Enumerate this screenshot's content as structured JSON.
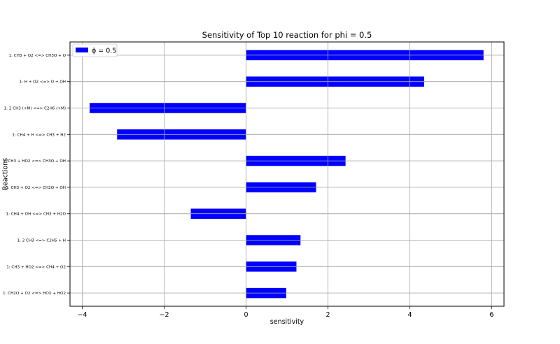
{
  "chart_data": {
    "type": "bar",
    "orientation": "horizontal",
    "title": "Sensitivity of Top 10 reaction for phi = 0.5",
    "xlabel": "sensitivity",
    "ylabel": "Reactions",
    "xlim": [
      -4.3,
      6.3
    ],
    "xticks": [
      -4,
      -2,
      0,
      2,
      4,
      6
    ],
    "xtick_labels": [
      "−4",
      "−2",
      "0",
      "2",
      "4",
      "6"
    ],
    "grid": true,
    "legend_position": "top-left",
    "categories": [
      "1: CH3 + O2 <=> CH3O + O",
      "1: H + O2 <=> O + OH",
      "1: 2 CH3 (+M) <=> C2H6 (+M)",
      "1: CH4 + H <=> CH3 + H2",
      "1: CH3 + HO2 <=> CH3O + OH",
      "1: CH3 + O2 <=> CH2O + OH",
      "1: CH4 + OH <=> CH3 + H2O",
      "1: 2 CH3 <=> C2H5 + H",
      "1: CH3 + HO2 <=> CH4 + O2",
      "1: CH2O + O2 <=> HCO + HO2"
    ],
    "series": [
      {
        "name": "ϕ = 0.5",
        "color": "#0000ff",
        "values": [
          5.8,
          4.35,
          -3.82,
          -3.15,
          2.43,
          1.71,
          -1.35,
          1.33,
          1.23,
          0.98
        ]
      }
    ]
  }
}
